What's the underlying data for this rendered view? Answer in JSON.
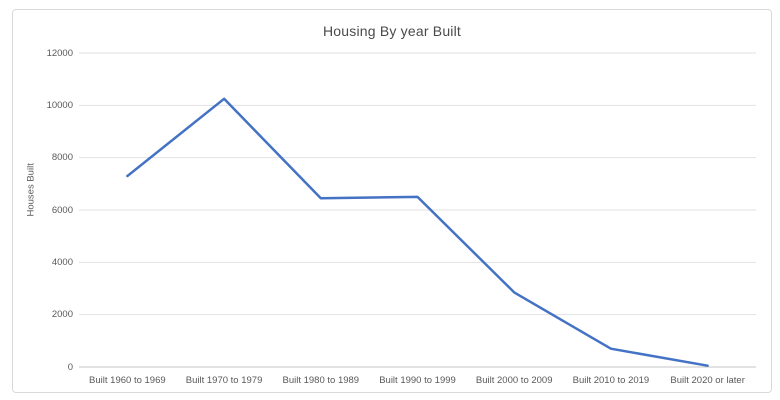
{
  "chart_data": {
    "type": "line",
    "title": "Housing By year Built",
    "xlabel": "",
    "ylabel": "Houses Built",
    "categories": [
      "Built 1960 to 1969",
      "Built 1970 to 1979",
      "Built 1980 to 1989",
      "Built 1990 to 1999",
      "Built 2000 to 2009",
      "Built 2010 to 2019",
      "Built 2020 or later"
    ],
    "series": [
      {
        "name": "Houses Built",
        "values": [
          7300,
          10250,
          6450,
          6500,
          2850,
          700,
          50
        ]
      }
    ],
    "ylim": [
      0,
      12000
    ],
    "ytick_step": 2000,
    "ytick_labels": [
      "0",
      "2000",
      "4000",
      "6000",
      "8000",
      "10000",
      "12000"
    ],
    "grid": true,
    "legend": false,
    "colors": {
      "line": "#4472C4",
      "gridline": "#e2e2e2",
      "axis_line": "#c6c6c6",
      "tick_text": "#595959",
      "title_text": "#4a4a4a",
      "frame_border": "#d9d9d9"
    }
  }
}
